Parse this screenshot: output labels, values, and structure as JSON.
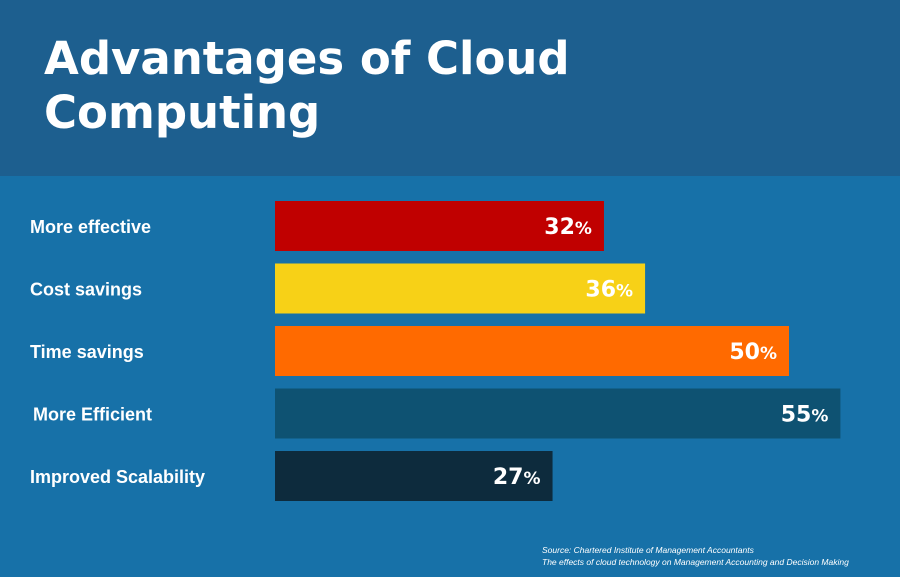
{
  "chart_data": {
    "type": "bar",
    "orientation": "horizontal",
    "title": "Advantages of Cloud Computing",
    "categories": [
      "More effective",
      "Cost savings",
      "Time savings",
      "More Efficient",
      "Improved Scalability"
    ],
    "values": [
      32,
      36,
      50,
      55,
      27
    ],
    "value_suffix": "%",
    "colors": [
      "#c00000",
      "#f7d117",
      "#ff6a00",
      "#0e5272",
      "#0d2b3d"
    ],
    "xlim": [
      0,
      60
    ],
    "grid": false,
    "legend": "none"
  },
  "source": {
    "line1": "Source: Chartered Institute of Management Accountants",
    "line2": "The effects of cloud technology on Management Accounting and Decision Making"
  },
  "colors": {
    "background": "#1771a8",
    "header": "#1d5f8f",
    "text": "#ffffff"
  }
}
